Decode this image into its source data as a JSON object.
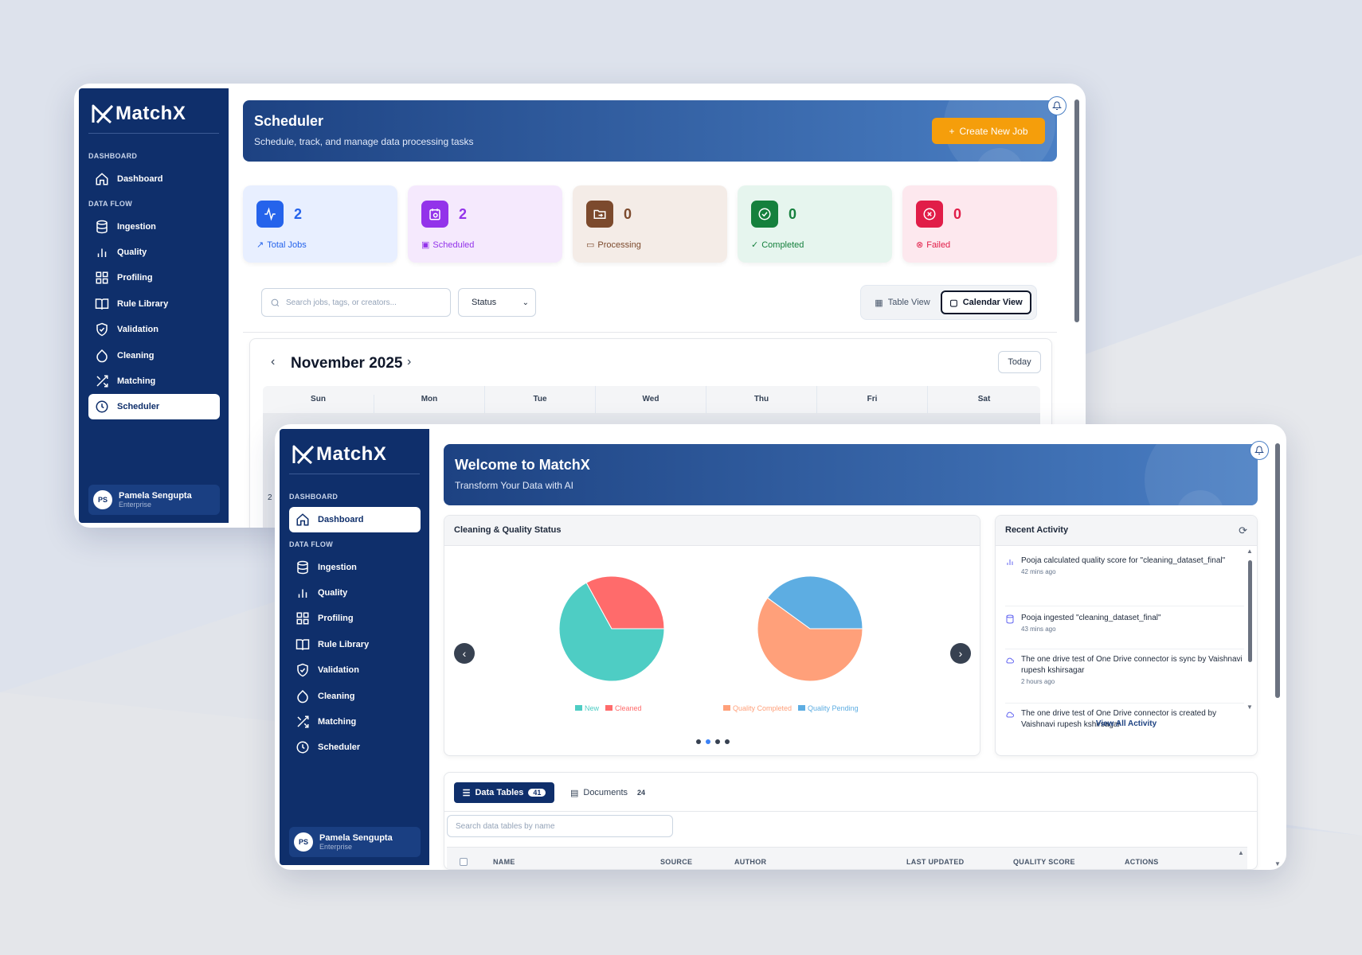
{
  "scheduler_window": {
    "brand": "MatchX",
    "sidebar": {
      "section_dashboard": "DASHBOARD",
      "section_dataflow": "DATA FLOW",
      "items": [
        {
          "label": "Dashboard",
          "icon": "home-icon"
        },
        {
          "label": "Ingestion",
          "icon": "database-icon"
        },
        {
          "label": "Quality",
          "icon": "bar-chart-icon"
        },
        {
          "label": "Profiling",
          "icon": "grid-icon"
        },
        {
          "label": "Rule Library",
          "icon": "book-icon"
        },
        {
          "label": "Validation",
          "icon": "shield-check-icon"
        },
        {
          "label": "Cleaning",
          "icon": "droplet-icon"
        },
        {
          "label": "Matching",
          "icon": "shuffle-icon"
        },
        {
          "label": "Scheduler",
          "icon": "clock-icon",
          "active": true
        }
      ],
      "user": {
        "initials": "PS",
        "name": "Pamela Sengupta",
        "plan": "Enterprise"
      }
    },
    "header": {
      "title": "Scheduler",
      "subtitle": "Schedule, track, and manage data processing tasks",
      "create_button": "Create New Job",
      "create_icon": "+"
    },
    "stats": [
      {
        "value": "2",
        "label": "Total Jobs",
        "color": "#2563eb",
        "bg": "#e8efff",
        "icon": "activity-icon"
      },
      {
        "value": "2",
        "label": "Scheduled",
        "color": "#9333ea",
        "bg": "#f5e9fd",
        "icon": "calendar-clock-icon"
      },
      {
        "value": "0",
        "label": "Processing",
        "color": "#7c4a2d",
        "bg": "#f4ece7",
        "icon": "folder-sync-icon"
      },
      {
        "value": "0",
        "label": "Completed",
        "color": "#15803d",
        "bg": "#e6f5ee",
        "icon": "check-circle-icon"
      },
      {
        "value": "0",
        "label": "Failed",
        "color": "#e11d48",
        "bg": "#fde8ee",
        "icon": "x-circle-icon"
      }
    ],
    "filters": {
      "search_placeholder": "Search jobs, tags, or creators...",
      "status_select": "Status",
      "table_view": "Table View",
      "calendar_view": "Calendar View"
    },
    "calendar": {
      "month": "November 2025",
      "today_button": "Today",
      "days": [
        "Sun",
        "Mon",
        "Tue",
        "Wed",
        "Thu",
        "Fri",
        "Sat"
      ],
      "first_cell_visible": "2"
    }
  },
  "dashboard_window": {
    "brand": "MatchX",
    "sidebar": {
      "section_dashboard": "DASHBOARD",
      "section_dataflow": "DATA FLOW",
      "items": [
        {
          "label": "Dashboard",
          "icon": "home-icon",
          "active": true
        },
        {
          "label": "Ingestion",
          "icon": "database-icon"
        },
        {
          "label": "Quality",
          "icon": "bar-chart-icon"
        },
        {
          "label": "Profiling",
          "icon": "grid-icon"
        },
        {
          "label": "Rule Library",
          "icon": "book-icon"
        },
        {
          "label": "Validation",
          "icon": "shield-check-icon"
        },
        {
          "label": "Cleaning",
          "icon": "droplet-icon"
        },
        {
          "label": "Matching",
          "icon": "shuffle-icon"
        },
        {
          "label": "Scheduler",
          "icon": "clock-icon"
        }
      ],
      "user": {
        "initials": "PS",
        "name": "Pamela Sengupta",
        "plan": "Enterprise"
      }
    },
    "header": {
      "title": "Welcome to MatchX",
      "subtitle": "Transform Your Data with AI"
    },
    "quality_card": {
      "title": "Cleaning & Quality Status",
      "carousel_dots": 4,
      "carousel_active": 1
    },
    "chart_data": [
      {
        "type": "pie",
        "labels": [
          "New",
          "Cleaned"
        ],
        "values": [
          67,
          33
        ],
        "colors": [
          "#4ecdc4",
          "#ff6b6b"
        ]
      },
      {
        "type": "pie",
        "labels": [
          "Quality Completed",
          "Quality Pending"
        ],
        "values": [
          60,
          40
        ],
        "colors": [
          "#ffa07a",
          "#5dade2"
        ]
      }
    ],
    "activity": {
      "title": "Recent Activity",
      "items": [
        {
          "icon": "bar-chart-icon",
          "text": "Pooja calculated quality score for \"cleaning_dataset_final\"",
          "time": "42 mins ago"
        },
        {
          "icon": "database-icon",
          "text": "Pooja ingested \"cleaning_dataset_final\"",
          "time": "43 mins ago"
        },
        {
          "icon": "cloud-icon",
          "text": "The one drive test of One Drive connector is sync by Vaishnavi rupesh kshirsagar",
          "time": "2 hours ago"
        },
        {
          "icon": "cloud-icon",
          "text": "The one drive test of One Drive connector is created by Vaishnavi rupesh kshirsagar",
          "time": ""
        }
      ],
      "view_all": "View All Activity"
    },
    "tables": {
      "tab_data_tables": "Data Tables",
      "tab_data_tables_count": "41",
      "tab_documents": "Documents",
      "tab_documents_count": "24",
      "search_placeholder": "Search data tables by name",
      "columns": [
        "NAME",
        "SOURCE",
        "AUTHOR",
        "LAST UPDATED",
        "QUALITY SCORE",
        "ACTIONS"
      ]
    }
  }
}
